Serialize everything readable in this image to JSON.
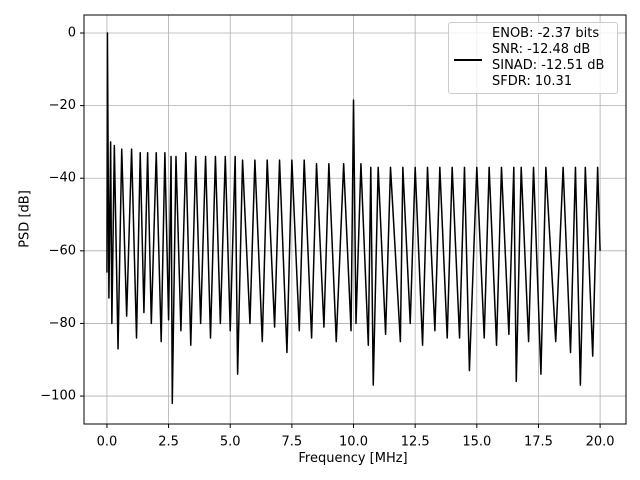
{
  "chart_data": {
    "type": "line",
    "xlabel": "Frequency [MHz]",
    "ylabel": "PSD [dB]",
    "xlim": [
      -0.93,
      21.05
    ],
    "ylim": [
      -107.7,
      4.96
    ],
    "xticks": [
      {
        "value": 0,
        "label": "0.0"
      },
      {
        "value": 2.5,
        "label": "2.5"
      },
      {
        "value": 5,
        "label": "5.0"
      },
      {
        "value": 7.5,
        "label": "7.5"
      },
      {
        "value": 10,
        "label": "10.0"
      },
      {
        "value": 12.5,
        "label": "12.5"
      },
      {
        "value": 15,
        "label": "15.0"
      },
      {
        "value": 17.5,
        "label": "17.5"
      },
      {
        "value": 20,
        "label": "20.0"
      }
    ],
    "yticks": [
      {
        "value": -100,
        "label": "−100"
      },
      {
        "value": -80,
        "label": "−80"
      },
      {
        "value": -60,
        "label": "−60"
      },
      {
        "value": -40,
        "label": "−40"
      },
      {
        "value": -20,
        "label": "−20"
      },
      0
    ],
    "grid": true,
    "legend": "upper right",
    "x": [
      0,
      0.02,
      0.04,
      0.08,
      0.15,
      0.2,
      0.3,
      0.45,
      0.6,
      0.8,
      1.0,
      1.2,
      1.35,
      1.5,
      1.65,
      1.8,
      2.0,
      2.2,
      2.35,
      2.5,
      2.6,
      2.65,
      2.8,
      3.0,
      3.2,
      3.4,
      3.6,
      3.8,
      4.0,
      4.2,
      4.4,
      4.6,
      4.8,
      5.0,
      5.2,
      5.3,
      5.5,
      5.8,
      6.0,
      6.3,
      6.5,
      6.8,
      7.0,
      7.3,
      7.5,
      7.8,
      8.0,
      8.3,
      8.5,
      8.8,
      9.0,
      9.3,
      9.6,
      9.9,
      10.0,
      10.1,
      10.3,
      10.6,
      10.7,
      10.8,
      11.0,
      11.3,
      11.5,
      11.9,
      12.0,
      12.3,
      12.5,
      12.8,
      13.0,
      13.3,
      13.5,
      13.8,
      14.0,
      14.3,
      14.5,
      14.7,
      15.0,
      15.3,
      15.5,
      15.8,
      16.0,
      16.3,
      16.5,
      16.6,
      16.8,
      17.1,
      17.3,
      17.6,
      17.8,
      18.2,
      18.5,
      18.8,
      19.0,
      19.2,
      19.4,
      19.7,
      19.9,
      20.0
    ],
    "series": [
      {
        "name": "ENOB: -2.37 bits\nSNR: -12.48 dB\nSINAD: -12.51 dB\nSFDR: 10.31",
        "color": "#000000",
        "values": [
          -66,
          0,
          -24,
          -73,
          -30,
          -80,
          -31,
          -87,
          -32,
          -78,
          -32,
          -84,
          -33,
          -77,
          -33,
          -80,
          -33,
          -85,
          -33,
          -79,
          -34,
          -102,
          -34,
          -82,
          -33,
          -86,
          -34,
          -80,
          -34,
          -84,
          -34,
          -80,
          -34,
          -82,
          -34,
          -94,
          -35,
          -80,
          -35,
          -85,
          -35,
          -81,
          -35,
          -88,
          -35,
          -82,
          -35,
          -84,
          -36,
          -81,
          -36,
          -85,
          -36,
          -82,
          -18.5,
          -80,
          -36,
          -86,
          -37,
          -97,
          -37,
          -83,
          -37,
          -85,
          -37,
          -80,
          -37,
          -86,
          -37,
          -82,
          -37,
          -84,
          -37,
          -84,
          -37,
          -93,
          -37,
          -84,
          -37,
          -86,
          -37,
          -83,
          -37,
          -96,
          -37,
          -85,
          -37,
          -94,
          -37,
          -85,
          -37,
          -88,
          -37,
          -97,
          -37,
          -89,
          -37,
          -60
        ]
      }
    ]
  }
}
